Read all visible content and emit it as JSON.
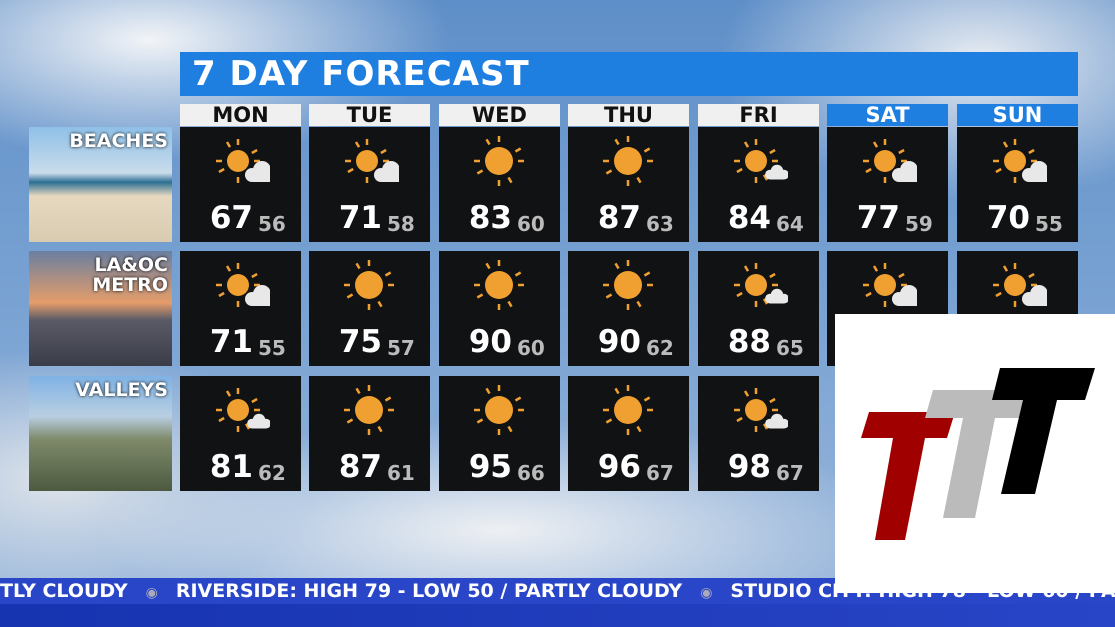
{
  "title": "7 DAY FORECAST",
  "days": [
    {
      "label": "MON",
      "weekend": false
    },
    {
      "label": "TUE",
      "weekend": false
    },
    {
      "label": "WED",
      "weekend": false
    },
    {
      "label": "THU",
      "weekend": false
    },
    {
      "label": "FRI",
      "weekend": false
    },
    {
      "label": "SAT",
      "weekend": true
    },
    {
      "label": "SUN",
      "weekend": true
    }
  ],
  "regions": [
    {
      "label": "BEACHES",
      "forecast": [
        {
          "icon": "partly-cloudy",
          "hi": "67",
          "lo": "56"
        },
        {
          "icon": "partly-cloudy",
          "hi": "71",
          "lo": "58"
        },
        {
          "icon": "sunny",
          "hi": "83",
          "lo": "60"
        },
        {
          "icon": "sunny",
          "hi": "87",
          "lo": "63"
        },
        {
          "icon": "mostly-sunny",
          "hi": "84",
          "lo": "64"
        },
        {
          "icon": "partly-cloudy",
          "hi": "77",
          "lo": "59"
        },
        {
          "icon": "partly-cloudy",
          "hi": "70",
          "lo": "55"
        }
      ]
    },
    {
      "label": "LA&OC METRO",
      "forecast": [
        {
          "icon": "partly-cloudy",
          "hi": "71",
          "lo": "55"
        },
        {
          "icon": "sunny",
          "hi": "75",
          "lo": "57"
        },
        {
          "icon": "sunny",
          "hi": "90",
          "lo": "60"
        },
        {
          "icon": "sunny",
          "hi": "90",
          "lo": "62"
        },
        {
          "icon": "mostly-sunny",
          "hi": "88",
          "lo": "65"
        },
        {
          "icon": "partly-cloudy"
        },
        {
          "icon": "partly-cloudy"
        }
      ]
    },
    {
      "label": "VALLEYS",
      "forecast": [
        {
          "icon": "mostly-sunny",
          "hi": "81",
          "lo": "62"
        },
        {
          "icon": "sunny",
          "hi": "87",
          "lo": "61"
        },
        {
          "icon": "sunny",
          "hi": "95",
          "lo": "66"
        },
        {
          "icon": "sunny",
          "hi": "96",
          "lo": "67"
        },
        {
          "icon": "mostly-sunny",
          "hi": "98",
          "lo": "67"
        }
      ]
    }
  ],
  "ticker": [
    "TLY CLOUDY",
    "RIVERSIDE: HIGH 79 - LOW 50 / PARTLY CLOUDY",
    "STUDIO CITY: HIGH 78 - LOW 60 / PA"
  ],
  "colors": {
    "accent": "#1f7fe0",
    "sun": "#f0a030",
    "ticker": "#2a46c8",
    "logo_red": "#a00000",
    "logo_gray": "#bbbbbb",
    "logo_black": "#000000"
  }
}
